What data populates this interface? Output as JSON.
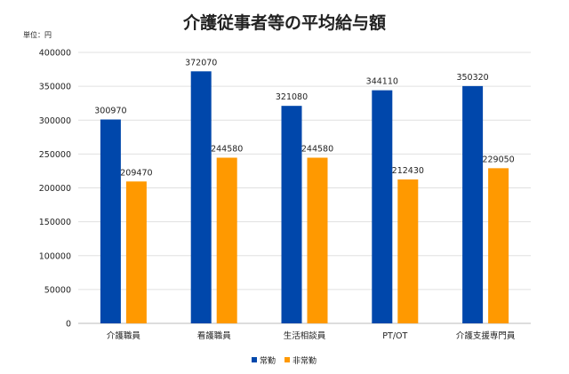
{
  "chart_data": {
    "type": "bar",
    "title": "介護従事者等の平均給与額",
    "unit_label": "単位：円",
    "categories": [
      "介護職員",
      "看護職員",
      "生活相談員",
      "PT/OT",
      "介護支援専門員"
    ],
    "series": [
      {
        "name": "常勤",
        "color": "#0047ab",
        "values": [
          300970,
          372070,
          321080,
          344110,
          350320
        ]
      },
      {
        "name": "非常勤",
        "color": "#ff9900",
        "values": [
          209470,
          244580,
          244580,
          212430,
          229050
        ]
      }
    ],
    "ylim": [
      0,
      400000
    ],
    "yticks": [
      0,
      50000,
      100000,
      150000,
      200000,
      250000,
      300000,
      350000,
      400000
    ],
    "grid": true,
    "legend": "bottom"
  }
}
